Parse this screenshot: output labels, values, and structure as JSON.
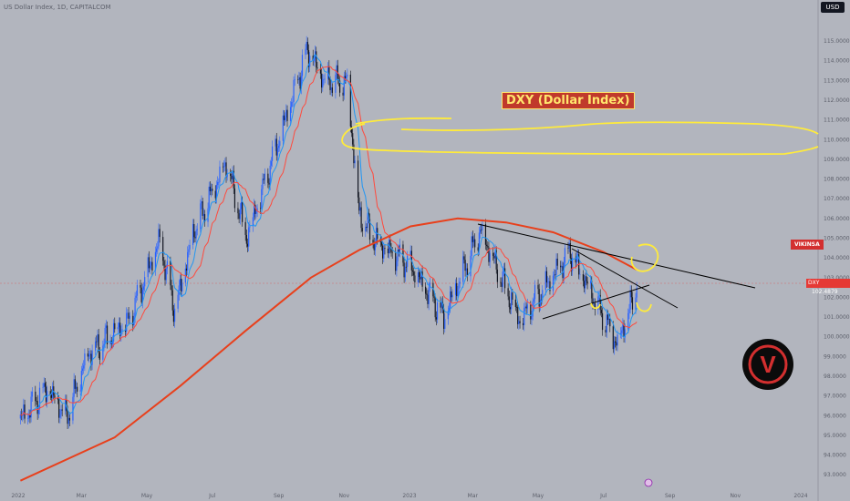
{
  "header": {
    "symbol_line": "US Dollar Index, 1D, CAPITALCOM",
    "currency": "USD"
  },
  "annotations": {
    "title": "DXY (Dollar Index)",
    "author_tag": "VIKINSA",
    "price_tag_symbol": "DXY",
    "price_tag_value": "102.4879",
    "logo_letter": "V"
  },
  "colors": {
    "background": "#b2b5be",
    "candle_up": "#2962ff",
    "candle_down": "#131722",
    "moving_average_long": "#e8401c",
    "moving_average_short": "#ff4a3d",
    "moving_average_fast": "#2196f3",
    "drawing_yellow": "#ffeb3b",
    "trendline": "#000000"
  },
  "chart_data": {
    "type": "line",
    "title": "DXY (Dollar Index)",
    "x_axis_labels": [
      "2022",
      "Mar",
      "May",
      "Jul",
      "Sep",
      "Nov",
      "2023",
      "Mar",
      "May",
      "Jul",
      "Sep",
      "Nov",
      "2024"
    ],
    "y_axis_labels": [
      "115.0000",
      "114.0000",
      "113.0000",
      "112.0000",
      "111.0000",
      "110.0000",
      "109.0000",
      "108.0000",
      "107.0000",
      "106.0000",
      "105.0000",
      "104.0000",
      "103.0000",
      "102.0000",
      "101.0000",
      "100.0000",
      "99.0000",
      "98.0000",
      "97.0000",
      "96.0000",
      "95.0000",
      "94.0000",
      "93.0000"
    ],
    "ylim": [
      92.7,
      115.7
    ],
    "last_price": 102.4879,
    "series": [
      {
        "kind": "price",
        "x": [
          "2022-01-03",
          "2022-01-28",
          "2022-02-15",
          "2022-03-07",
          "2022-04-14",
          "2022-05-13",
          "2022-05-27",
          "2022-06-14",
          "2022-07-14",
          "2022-08-02",
          "2022-08-29",
          "2022-09-28",
          "2022-10-13",
          "2022-11-04",
          "2022-11-15",
          "2022-12-01",
          "2023-01-02",
          "2023-02-02",
          "2023-03-08",
          "2023-04-14",
          "2023-05-31",
          "2023-07-14",
          "2023-08-01"
        ],
        "values": [
          95.8,
          97.4,
          95.9,
          99.1,
          100.8,
          104.9,
          101.3,
          105.4,
          108.8,
          105.0,
          109.5,
          114.6,
          113.0,
          112.9,
          106.2,
          104.8,
          103.6,
          101.0,
          105.4,
          100.8,
          104.3,
          99.6,
          102.49
        ]
      },
      {
        "kind": "long moving average",
        "x": [
          "2022-01-03",
          "2022-04-01",
          "2022-06-01",
          "2022-08-01",
          "2022-10-01",
          "2022-11-15",
          "2023-01-02",
          "2023-02-15",
          "2023-04-01",
          "2023-05-15",
          "2023-07-01",
          "2023-08-01"
        ],
        "values": [
          92.7,
          94.9,
          97.5,
          100.3,
          103.0,
          104.4,
          105.6,
          106.0,
          105.8,
          105.3,
          104.3,
          103.4
        ]
      }
    ],
    "grid": false,
    "legend": "none"
  }
}
